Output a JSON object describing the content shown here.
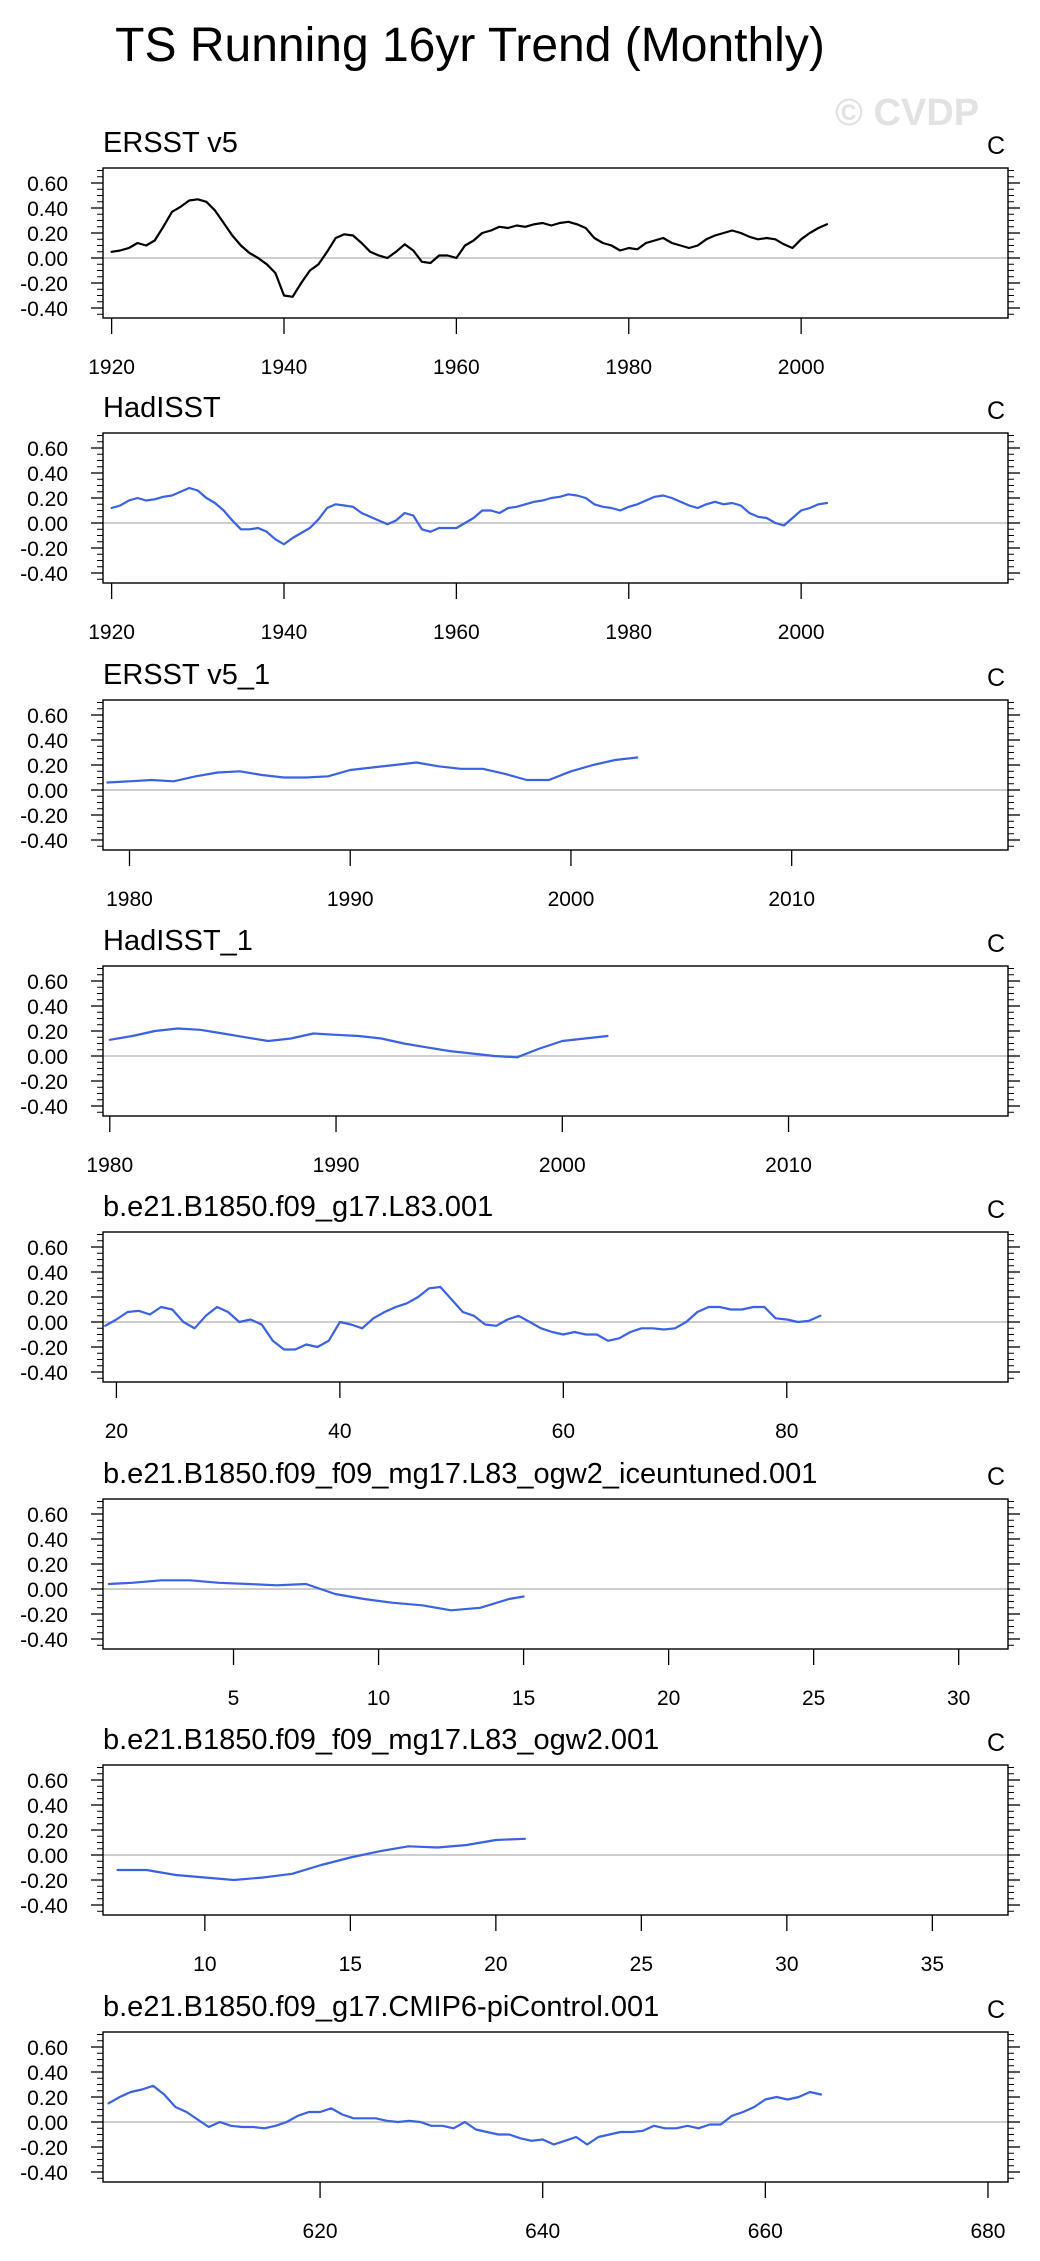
{
  "title": "TS Running 16yr Trend (Monthly)",
  "watermark": "© CVDP",
  "colors": {
    "observed": "#000000",
    "simulated": "#3b62e3",
    "zero_line": "#bdbdbd"
  },
  "chart_data": [
    {
      "type": "line",
      "title": "ERSST v5",
      "units": "C",
      "line_color": "#000000",
      "xlim": [
        1919,
        2024
      ],
      "ylim": [
        -0.48,
        0.72
      ],
      "xticks": [
        1920,
        1940,
        1960,
        1980,
        2000
      ],
      "xtick_labels": [
        "1920",
        "1940",
        "1960",
        "1980",
        "2000"
      ],
      "yticks": [
        0.6,
        0.4,
        0.2,
        0.0,
        -0.2,
        -0.4
      ],
      "ytick_labels": [
        "0.60",
        "0.40",
        "0.20",
        "0.00",
        "-0.20",
        "-0.40"
      ],
      "x": [
        1920,
        1921,
        1922,
        1923,
        1924,
        1925,
        1926,
        1927,
        1928,
        1929,
        1930,
        1931,
        1932,
        1933,
        1934,
        1935,
        1936,
        1937,
        1938,
        1939,
        1940,
        1941,
        1942,
        1943,
        1944,
        1945,
        1946,
        1947,
        1948,
        1949,
        1950,
        1951,
        1952,
        1953,
        1954,
        1955,
        1956,
        1957,
        1958,
        1959,
        1960,
        1961,
        1962,
        1963,
        1964,
        1965,
        1966,
        1967,
        1968,
        1969,
        1970,
        1971,
        1972,
        1973,
        1974,
        1975,
        1976,
        1977,
        1978,
        1979,
        1980,
        1981,
        1982,
        1983,
        1984,
        1985,
        1986,
        1987,
        1988,
        1989,
        1990,
        1991,
        1992,
        1993,
        1994,
        1995,
        1996,
        1997,
        1998,
        1999,
        2000,
        2001,
        2002,
        2003
      ],
      "y": [
        0.05,
        0.06,
        0.08,
        0.12,
        0.1,
        0.14,
        0.25,
        0.37,
        0.41,
        0.46,
        0.47,
        0.45,
        0.38,
        0.28,
        0.18,
        0.1,
        0.04,
        0.0,
        -0.05,
        -0.12,
        -0.3,
        -0.31,
        -0.2,
        -0.1,
        -0.05,
        0.05,
        0.16,
        0.19,
        0.18,
        0.12,
        0.05,
        0.02,
        0.0,
        0.05,
        0.11,
        0.06,
        -0.03,
        -0.04,
        0.02,
        0.02,
        0.0,
        0.1,
        0.14,
        0.2,
        0.22,
        0.25,
        0.24,
        0.26,
        0.25,
        0.27,
        0.28,
        0.26,
        0.28,
        0.29,
        0.27,
        0.24,
        0.16,
        0.12,
        0.1,
        0.06,
        0.08,
        0.07,
        0.12,
        0.14,
        0.16,
        0.12,
        0.1,
        0.08,
        0.1,
        0.15,
        0.18,
        0.2,
        0.22,
        0.2,
        0.17,
        0.15,
        0.16,
        0.15,
        0.11,
        0.08,
        0.15,
        0.2,
        0.24,
        0.27
      ]
    },
    {
      "type": "line",
      "title": "HadISST",
      "units": "C",
      "line_color": "#3b62e3",
      "xlim": [
        1919,
        2024
      ],
      "ylim": [
        -0.48,
        0.72
      ],
      "xticks": [
        1920,
        1940,
        1960,
        1980,
        2000
      ],
      "xtick_labels": [
        "1920",
        "1940",
        "1960",
        "1980",
        "2000"
      ],
      "yticks": [
        0.6,
        0.4,
        0.2,
        0.0,
        -0.2,
        -0.4
      ],
      "ytick_labels": [
        "0.60",
        "0.40",
        "0.20",
        "0.00",
        "-0.20",
        "-0.40"
      ],
      "x": [
        1920,
        1921,
        1922,
        1923,
        1924,
        1925,
        1926,
        1927,
        1928,
        1929,
        1930,
        1931,
        1932,
        1933,
        1934,
        1935,
        1936,
        1937,
        1938,
        1939,
        1940,
        1941,
        1942,
        1943,
        1944,
        1945,
        1946,
        1947,
        1948,
        1949,
        1950,
        1951,
        1952,
        1953,
        1954,
        1955,
        1956,
        1957,
        1958,
        1959,
        1960,
        1961,
        1962,
        1963,
        1964,
        1965,
        1966,
        1967,
        1968,
        1969,
        1970,
        1971,
        1972,
        1973,
        1974,
        1975,
        1976,
        1977,
        1978,
        1979,
        1980,
        1981,
        1982,
        1983,
        1984,
        1985,
        1986,
        1987,
        1988,
        1989,
        1990,
        1991,
        1992,
        1993,
        1994,
        1995,
        1996,
        1997,
        1998,
        1999,
        2000,
        2001,
        2002,
        2003
      ],
      "y": [
        0.12,
        0.14,
        0.18,
        0.2,
        0.18,
        0.19,
        0.21,
        0.22,
        0.25,
        0.28,
        0.26,
        0.2,
        0.16,
        0.1,
        0.02,
        -0.05,
        -0.05,
        -0.04,
        -0.07,
        -0.13,
        -0.17,
        -0.12,
        -0.08,
        -0.04,
        0.03,
        0.12,
        0.15,
        0.14,
        0.13,
        0.08,
        0.05,
        0.02,
        -0.01,
        0.02,
        0.08,
        0.06,
        -0.05,
        -0.07,
        -0.04,
        -0.04,
        -0.04,
        0.0,
        0.04,
        0.1,
        0.1,
        0.08,
        0.12,
        0.13,
        0.15,
        0.17,
        0.18,
        0.2,
        0.21,
        0.23,
        0.22,
        0.2,
        0.15,
        0.13,
        0.12,
        0.1,
        0.13,
        0.15,
        0.18,
        0.21,
        0.22,
        0.2,
        0.17,
        0.14,
        0.12,
        0.15,
        0.17,
        0.15,
        0.16,
        0.14,
        0.08,
        0.05,
        0.04,
        0.0,
        -0.02,
        0.04,
        0.1,
        0.12,
        0.15,
        0.16
      ]
    },
    {
      "type": "line",
      "title": "ERSST v5_1",
      "units": "C",
      "line_color": "#3b62e3",
      "xlim": [
        1978.8,
        2019.8
      ],
      "ylim": [
        -0.48,
        0.72
      ],
      "xticks": [
        1980,
        1990,
        2000,
        2010
      ],
      "xtick_labels": [
        "1980",
        "1990",
        "2000",
        "2010"
      ],
      "yticks": [
        0.6,
        0.4,
        0.2,
        0.0,
        -0.2,
        -0.4
      ],
      "ytick_labels": [
        "0.60",
        "0.40",
        "0.20",
        "0.00",
        "-0.20",
        "-0.40"
      ],
      "x": [
        1979,
        1980,
        1981,
        1982,
        1983,
        1984,
        1985,
        1986,
        1987,
        1988,
        1989,
        1990,
        1991,
        1992,
        1993,
        1994,
        1995,
        1996,
        1997,
        1998,
        1999,
        2000,
        2001,
        2002,
        2003
      ],
      "y": [
        0.06,
        0.07,
        0.08,
        0.07,
        0.11,
        0.14,
        0.15,
        0.12,
        0.1,
        0.1,
        0.11,
        0.16,
        0.18,
        0.2,
        0.22,
        0.19,
        0.17,
        0.17,
        0.13,
        0.08,
        0.08,
        0.15,
        0.2,
        0.24,
        0.26
      ]
    },
    {
      "type": "line",
      "title": "HadISST_1",
      "units": "C",
      "line_color": "#3b62e3",
      "xlim": [
        1979.7,
        2019.7
      ],
      "ylim": [
        -0.48,
        0.72
      ],
      "xticks": [
        1980,
        1990,
        2000,
        2010
      ],
      "xtick_labels": [
        "1980",
        "1990",
        "2000",
        "2010"
      ],
      "yticks": [
        0.6,
        0.4,
        0.2,
        0.0,
        -0.2,
        -0.4
      ],
      "ytick_labels": [
        "0.60",
        "0.40",
        "0.20",
        "0.00",
        "-0.20",
        "-0.40"
      ],
      "x": [
        1980,
        1981,
        1982,
        1983,
        1984,
        1985,
        1986,
        1987,
        1988,
        1989,
        1990,
        1991,
        1992,
        1993,
        1994,
        1995,
        1996,
        1997,
        1998,
        1999,
        2000,
        2001,
        2002
      ],
      "y": [
        0.13,
        0.16,
        0.2,
        0.22,
        0.21,
        0.18,
        0.15,
        0.12,
        0.14,
        0.18,
        0.17,
        0.16,
        0.14,
        0.1,
        0.07,
        0.04,
        0.02,
        0.0,
        -0.01,
        0.06,
        0.12,
        0.14,
        0.16
      ]
    },
    {
      "type": "line",
      "title": "b.e21.B1850.f09_g17.L83.001",
      "units": "C",
      "line_color": "#3b62e3",
      "xlim": [
        18.8,
        99.8
      ],
      "ylim": [
        -0.48,
        0.72
      ],
      "xticks": [
        20,
        40,
        60,
        80
      ],
      "xtick_labels": [
        "20",
        "40",
        "60",
        "80"
      ],
      "yticks": [
        0.6,
        0.4,
        0.2,
        0.0,
        -0.2,
        -0.4
      ],
      "ytick_labels": [
        "0.60",
        "0.40",
        "0.20",
        "0.00",
        "-0.20",
        "-0.40"
      ],
      "x": [
        19,
        20,
        21,
        22,
        23,
        24,
        25,
        26,
        27,
        28,
        29,
        30,
        31,
        32,
        33,
        34,
        35,
        36,
        37,
        38,
        39,
        40,
        41,
        42,
        43,
        44,
        45,
        46,
        47,
        48,
        49,
        50,
        51,
        52,
        53,
        54,
        55,
        56,
        57,
        58,
        59,
        60,
        61,
        62,
        63,
        64,
        65,
        66,
        67,
        68,
        69,
        70,
        71,
        72,
        73,
        74,
        75,
        76,
        77,
        78,
        79,
        80,
        81,
        82,
        83
      ],
      "y": [
        -0.03,
        0.02,
        0.08,
        0.09,
        0.06,
        0.12,
        0.1,
        0.0,
        -0.05,
        0.05,
        0.12,
        0.08,
        0.0,
        0.02,
        -0.02,
        -0.15,
        -0.22,
        -0.22,
        -0.18,
        -0.2,
        -0.15,
        0.0,
        -0.02,
        -0.05,
        0.03,
        0.08,
        0.12,
        0.15,
        0.2,
        0.27,
        0.28,
        0.18,
        0.08,
        0.05,
        -0.02,
        -0.03,
        0.02,
        0.05,
        0.0,
        -0.05,
        -0.08,
        -0.1,
        -0.08,
        -0.1,
        -0.1,
        -0.15,
        -0.13,
        -0.08,
        -0.05,
        -0.05,
        -0.06,
        -0.05,
        0.0,
        0.08,
        0.12,
        0.12,
        0.1,
        0.1,
        0.12,
        0.12,
        0.03,
        0.02,
        0.0,
        0.01,
        0.05
      ]
    },
    {
      "type": "line",
      "title": "b.e21.B1850.f09_f09_mg17.L83_ogw2_iceuntuned.001",
      "units": "C",
      "line_color": "#3b62e3",
      "xlim": [
        0.5,
        31.7
      ],
      "ylim": [
        -0.48,
        0.72
      ],
      "xticks": [
        5,
        10,
        15,
        20,
        25,
        30
      ],
      "xtick_labels": [
        "5",
        "10",
        "15",
        "20",
        "25",
        "30"
      ],
      "yticks": [
        0.6,
        0.4,
        0.2,
        0.0,
        -0.2,
        -0.4
      ],
      "ytick_labels": [
        "0.60",
        "0.40",
        "0.20",
        "0.00",
        "-0.20",
        "-0.40"
      ],
      "x": [
        0.7,
        1.5,
        2.5,
        3.5,
        4.5,
        5.5,
        6.5,
        7.5,
        8.5,
        9.5,
        10.5,
        11.5,
        12.5,
        13.5,
        14.5,
        15.0
      ],
      "y": [
        0.04,
        0.05,
        0.07,
        0.07,
        0.05,
        0.04,
        0.03,
        0.04,
        -0.04,
        -0.08,
        -0.11,
        -0.13,
        -0.17,
        -0.15,
        -0.08,
        -0.06
      ]
    },
    {
      "type": "line",
      "title": "b.e21.B1850.f09_f09_mg17.L83_ogw2.001",
      "units": "C",
      "line_color": "#3b62e3",
      "xlim": [
        6.5,
        37.6
      ],
      "ylim": [
        -0.48,
        0.72
      ],
      "xticks": [
        10,
        15,
        20,
        25,
        30,
        35
      ],
      "xtick_labels": [
        "10",
        "15",
        "20",
        "25",
        "30",
        "35"
      ],
      "yticks": [
        0.6,
        0.4,
        0.2,
        0.0,
        -0.2,
        -0.4
      ],
      "ytick_labels": [
        "0.60",
        "0.40",
        "0.20",
        "0.00",
        "-0.20",
        "-0.40"
      ],
      "x": [
        7,
        8,
        9,
        10,
        11,
        12,
        13,
        14,
        15,
        16,
        17,
        18,
        19,
        20,
        21
      ],
      "y": [
        -0.12,
        -0.12,
        -0.16,
        -0.18,
        -0.2,
        -0.18,
        -0.15,
        -0.08,
        -0.02,
        0.03,
        0.07,
        0.06,
        0.08,
        0.12,
        0.13
      ]
    },
    {
      "type": "line",
      "title": "b.e21.B1850.f09_g17.CMIP6-piControl.001",
      "units": "C",
      "line_color": "#3b62e3",
      "xlim": [
        600.5,
        681.8
      ],
      "ylim": [
        -0.48,
        0.72
      ],
      "xticks": [
        620,
        640,
        660,
        680
      ],
      "xtick_labels": [
        "620",
        "640",
        "660",
        "680"
      ],
      "yticks": [
        0.6,
        0.4,
        0.2,
        0.0,
        -0.2,
        -0.4
      ],
      "ytick_labels": [
        "0.60",
        "0.40",
        "0.20",
        "0.00",
        "-0.20",
        "-0.40"
      ],
      "x": [
        601,
        602,
        603,
        604,
        605,
        606,
        607,
        608,
        609,
        610,
        611,
        612,
        613,
        614,
        615,
        616,
        617,
        618,
        619,
        620,
        621,
        622,
        623,
        624,
        625,
        626,
        627,
        628,
        629,
        630,
        631,
        632,
        633,
        634,
        635,
        636,
        637,
        638,
        639,
        640,
        641,
        642,
        643,
        644,
        645,
        646,
        647,
        648,
        649,
        650,
        651,
        652,
        653,
        654,
        655,
        656,
        657,
        658,
        659,
        660,
        661,
        662,
        663,
        664,
        665
      ],
      "y": [
        0.15,
        0.2,
        0.24,
        0.26,
        0.29,
        0.22,
        0.12,
        0.08,
        0.02,
        -0.04,
        0.0,
        -0.03,
        -0.04,
        -0.04,
        -0.05,
        -0.03,
        0.0,
        0.05,
        0.08,
        0.08,
        0.11,
        0.06,
        0.03,
        0.03,
        0.03,
        0.01,
        0.0,
        0.01,
        0.0,
        -0.03,
        -0.03,
        -0.05,
        0.0,
        -0.06,
        -0.08,
        -0.1,
        -0.1,
        -0.13,
        -0.15,
        -0.14,
        -0.18,
        -0.15,
        -0.12,
        -0.18,
        -0.12,
        -0.1,
        -0.08,
        -0.08,
        -0.07,
        -0.03,
        -0.05,
        -0.05,
        -0.03,
        -0.05,
        -0.02,
        -0.02,
        0.05,
        0.08,
        0.12,
        0.18,
        0.2,
        0.18,
        0.2,
        0.24,
        0.22
      ]
    }
  ]
}
